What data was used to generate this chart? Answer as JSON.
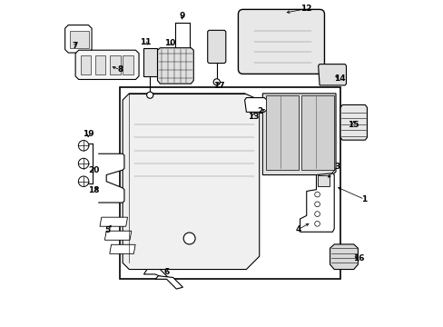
{
  "background_color": "#ffffff",
  "fig_width": 4.89,
  "fig_height": 3.6,
  "dpi": 100,
  "line_color": "#000000",
  "fill_light": "#f0f0f0",
  "fill_mid": "#e0e0e0",
  "fill_dark": "#d0d0d0"
}
